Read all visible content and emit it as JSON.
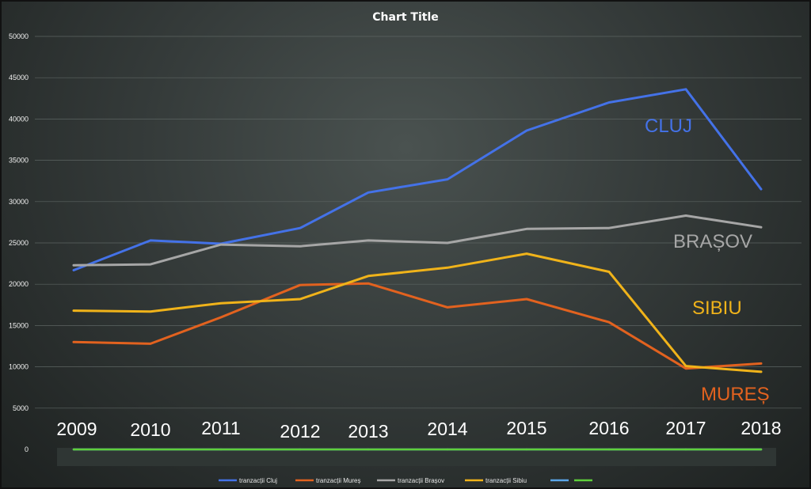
{
  "chart_data": {
    "type": "line",
    "title": "Chart Title",
    "xlabel": "",
    "ylabel": "",
    "categories": [
      "2009",
      "2010",
      "2011",
      "2012",
      "2013",
      "2014",
      "2015",
      "2016",
      "2017",
      "2018"
    ],
    "ylim": [
      0,
      50000
    ],
    "yticks": [
      0,
      5000,
      10000,
      15000,
      20000,
      25000,
      30000,
      35000,
      40000,
      45000,
      50000
    ],
    "grid": true,
    "legend_position": "bottom",
    "series": [
      {
        "name": "tranzacții Cluj",
        "color": "#4472e8",
        "values": [
          21700,
          25300,
          24900,
          26800,
          31100,
          32700,
          38600,
          42000,
          43600,
          31500
        ]
      },
      {
        "name": "tranzacții Mureș",
        "color": "#e2621f",
        "values": [
          13000,
          12800,
          16000,
          19900,
          20100,
          17200,
          18200,
          15400,
          9800,
          10400
        ]
      },
      {
        "name": "tranzacții Brașov",
        "color": "#a6a6a6",
        "values": [
          22300,
          22400,
          24800,
          24600,
          25300,
          25000,
          26700,
          26800,
          28300,
          26900
        ]
      },
      {
        "name": "tranzacții Sibiu",
        "color": "#f0b31a",
        "values": [
          16800,
          16700,
          17700,
          18200,
          21000,
          22000,
          23700,
          21500,
          10100,
          9400
        ]
      },
      {
        "name": "",
        "color": "#5aa6e8",
        "values": [
          0,
          0,
          0,
          0,
          0,
          0,
          0,
          0,
          0,
          0
        ]
      },
      {
        "name": "",
        "color": "#5fcf3b",
        "values": [
          0,
          0,
          0,
          0,
          0,
          0,
          0,
          0,
          0,
          0
        ]
      }
    ],
    "annotations": [
      {
        "text": "CLUJ",
        "color": "#4472e8"
      },
      {
        "text": "BRAȘOV",
        "color": "#a6a6a6"
      },
      {
        "text": "SIBIU",
        "color": "#f0b31a"
      },
      {
        "text": "MUREȘ",
        "color": "#e2621f"
      }
    ]
  }
}
